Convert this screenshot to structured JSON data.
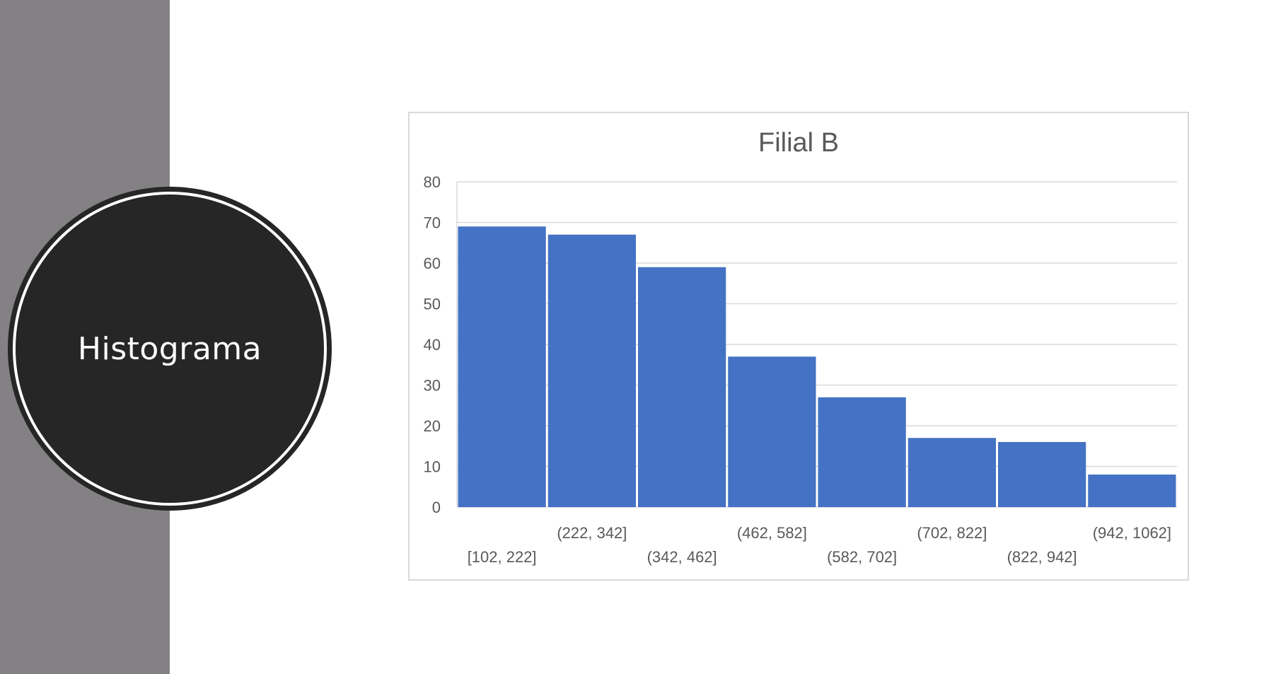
{
  "slide": {
    "title": "Histograma"
  },
  "colors": {
    "side_panel": "#838183",
    "circle": "#262626",
    "bar_fill": "#4472c4",
    "gridline": "#d9d9d9",
    "text": "#595959"
  },
  "chart_data": {
    "type": "bar",
    "title": "Filial B",
    "xlabel": "",
    "ylabel": "",
    "categories": [
      "[102, 222]",
      "(222, 342]",
      "(342, 462]",
      "(462, 582]",
      "(582, 702]",
      "(702, 822]",
      "(822, 942]",
      "(942, 1062]"
    ],
    "values": [
      69,
      67,
      59,
      37,
      27,
      17,
      16,
      8
    ],
    "ylim": [
      0,
      80
    ],
    "yticks": [
      0,
      10,
      20,
      30,
      40,
      50,
      60,
      70,
      80
    ],
    "grid": true,
    "legend": "none"
  }
}
